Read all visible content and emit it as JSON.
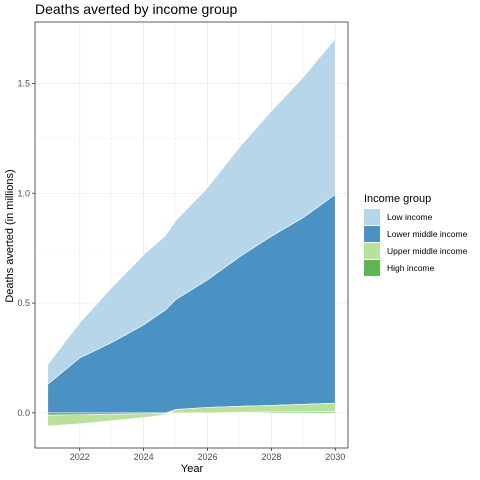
{
  "chart_data": {
    "type": "area",
    "title": "Deaths averted by income group",
    "xlabel": "Year",
    "ylabel": "Deaths averted (in millions)",
    "xlim": [
      2020.6,
      2030.4
    ],
    "ylim": [
      -0.16,
      1.78
    ],
    "x_ticks": [
      2022,
      2024,
      2026,
      2028,
      2030
    ],
    "y_ticks": [
      0.0,
      0.5,
      1.0,
      1.5
    ],
    "y_tick_labels": [
      "0.0",
      "0.5",
      "1.0",
      "1.5"
    ],
    "grid": true,
    "legend_title": "Income group",
    "legend_position": "right",
    "x": [
      2021,
      2022,
      2023,
      2024,
      2024.7,
      2025,
      2026,
      2027,
      2028,
      2029,
      2030
    ],
    "series": [
      {
        "name": "High income",
        "color": "#5fb54f",
        "values": [
          -0.01,
          -0.008,
          -0.006,
          -0.004,
          -0.003,
          -0.002,
          0.0,
          0.002,
          0.004,
          0.005,
          0.006
        ]
      },
      {
        "name": "Upper middle income",
        "color": "#b9e19b",
        "values": [
          -0.05,
          -0.042,
          -0.03,
          -0.018,
          -0.005,
          0.015,
          0.025,
          0.028,
          0.03,
          0.034,
          0.038
        ]
      },
      {
        "name": "Lower middle income",
        "color": "#4a91c4",
        "values": [
          0.13,
          0.25,
          0.32,
          0.4,
          0.47,
          0.5,
          0.58,
          0.68,
          0.77,
          0.85,
          0.95
        ]
      },
      {
        "name": "Low income",
        "color": "#b8d6ea",
        "values": [
          0.09,
          0.16,
          0.25,
          0.32,
          0.34,
          0.36,
          0.42,
          0.5,
          0.57,
          0.64,
          0.71
        ]
      }
    ],
    "legend_order": [
      "Low income",
      "Lower middle income",
      "Upper middle income",
      "High income"
    ]
  }
}
